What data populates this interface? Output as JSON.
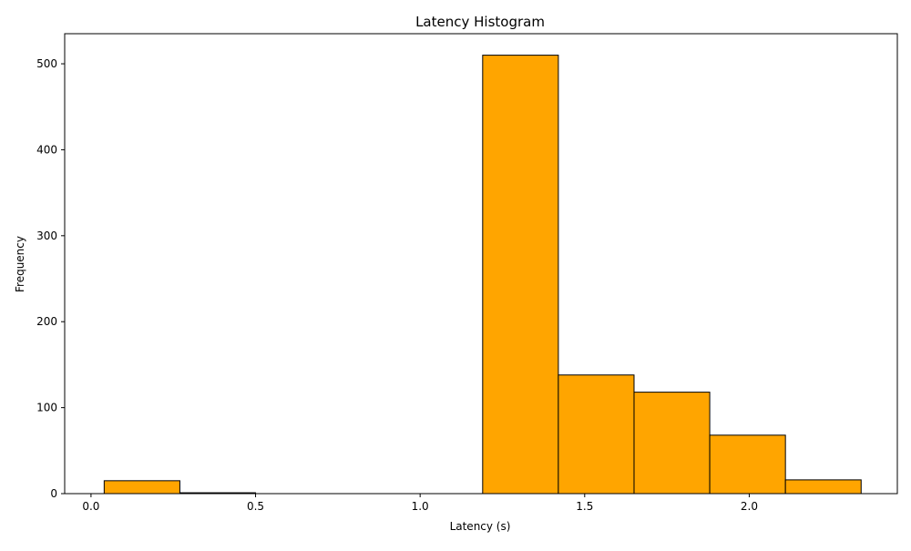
{
  "chart_data": {
    "type": "bar",
    "title": "Latency Histogram",
    "xlabel": "Latency (s)",
    "ylabel": "Frequency",
    "xlim": [
      -0.08,
      2.45
    ],
    "ylim": [
      0,
      535
    ],
    "xticks": [
      0.0,
      0.5,
      1.0,
      1.5,
      2.0
    ],
    "xtick_labels": [
      "0.0",
      "0.5",
      "1.0",
      "1.5",
      "2.0"
    ],
    "yticks": [
      0,
      100,
      200,
      300,
      400,
      500
    ],
    "ytick_labels": [
      "0",
      "100",
      "200",
      "300",
      "400",
      "500"
    ],
    "bins": [
      {
        "x0": 0.04,
        "x1": 0.27,
        "value": 15
      },
      {
        "x0": 0.27,
        "x1": 0.5,
        "value": 1
      },
      {
        "x0": 0.5,
        "x1": 0.73,
        "value": 0
      },
      {
        "x0": 0.73,
        "x1": 0.96,
        "value": 0
      },
      {
        "x0": 0.96,
        "x1": 1.19,
        "value": 0
      },
      {
        "x0": 1.19,
        "x1": 1.42,
        "value": 510
      },
      {
        "x0": 1.42,
        "x1": 1.65,
        "value": 138
      },
      {
        "x0": 1.65,
        "x1": 1.88,
        "value": 118
      },
      {
        "x0": 1.88,
        "x1": 2.11,
        "value": 68
      },
      {
        "x0": 2.11,
        "x1": 2.34,
        "value": 16
      }
    ],
    "bar_color": "#FFA500",
    "edge_color": "#000000",
    "grid": false,
    "legend": "none"
  }
}
